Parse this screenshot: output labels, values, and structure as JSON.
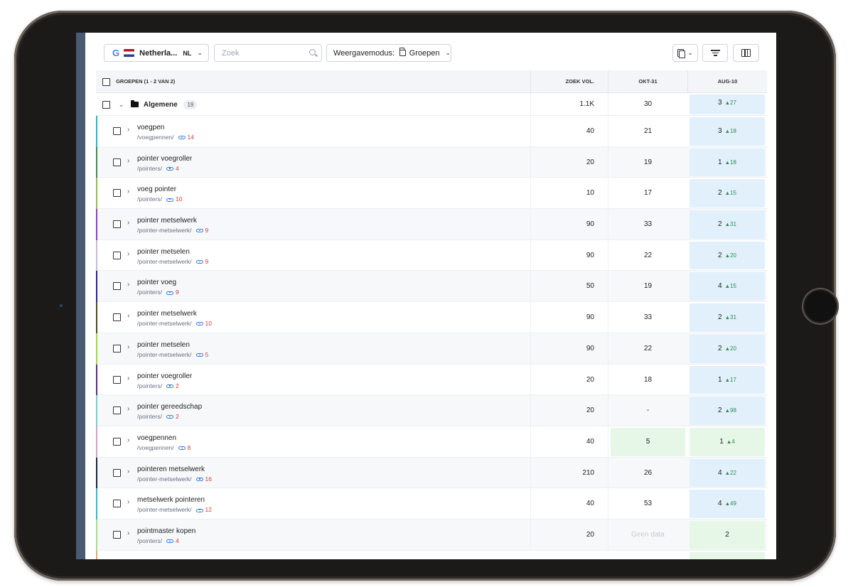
{
  "toolbar": {
    "country_name": "Netherla...",
    "country_code": "NL",
    "search_placeholder": "Zoek",
    "viewmode_label": "Weergavemodus:",
    "viewmode_value": "Groepen"
  },
  "table": {
    "header": {
      "groups": "GROEPEN (1 - 2 VAN 2)",
      "volume": "ZOEK VOL.",
      "okt": "OKT-31",
      "aug": "AUG-10"
    },
    "group": {
      "name": "Algemene",
      "count": "19",
      "volume": "1.1K",
      "okt": "30",
      "aug_rank": "3",
      "aug_change": "27"
    },
    "rows": [
      {
        "keyword": "voegpen",
        "url": "/voegpennen/",
        "links": "14",
        "volume": "40",
        "okt": "21",
        "aug_rank": "3",
        "aug_change": "18",
        "bar": "#21b8c9"
      },
      {
        "keyword": "pointer voegroller",
        "url": "/pointers/",
        "links": "4",
        "volume": "20",
        "okt": "19",
        "aug_rank": "1",
        "aug_change": "18",
        "bar": "#3f8a4a"
      },
      {
        "keyword": "voeg pointer",
        "url": "/pointers/",
        "links": "10",
        "volume": "10",
        "okt": "17",
        "aug_rank": "2",
        "aug_change": "15",
        "bar": "#8fbf4a"
      },
      {
        "keyword": "pointer metselwerk",
        "url": "/pointer-metselwerk/",
        "links": "9",
        "volume": "90",
        "okt": "33",
        "aug_rank": "2",
        "aug_change": "31",
        "bar": "#8a3fd1"
      },
      {
        "keyword": "pointer metselen",
        "url": "/pointer-metselwerk/",
        "links": "9",
        "volume": "90",
        "okt": "22",
        "aug_rank": "2",
        "aug_change": "20",
        "bar": "#c4b8e0"
      },
      {
        "keyword": "pointer voeg",
        "url": "/pointers/",
        "links": "9",
        "volume": "50",
        "okt": "19",
        "aug_rank": "4",
        "aug_change": "15",
        "bar": "#2a1fa0"
      },
      {
        "keyword": "pointer metselwerk",
        "url": "/pointer-metselwerk/",
        "links": "10",
        "volume": "90",
        "okt": "33",
        "aug_rank": "2",
        "aug_change": "31",
        "bar": "#4a4a1e"
      },
      {
        "keyword": "pointer metselen",
        "url": "/pointer-metselwerk/",
        "links": "5",
        "volume": "90",
        "okt": "22",
        "aug_rank": "2",
        "aug_change": "20",
        "bar": "#a6d83a"
      },
      {
        "keyword": "pointer voegroller",
        "url": "/pointers/",
        "links": "2",
        "volume": "20",
        "okt": "18",
        "aug_rank": "1",
        "aug_change": "17",
        "bar": "#5a2a8a"
      },
      {
        "keyword": "pointer gereedschap",
        "url": "/pointers/",
        "links": "2",
        "volume": "20",
        "okt": "-",
        "aug_rank": "2",
        "aug_change": "98",
        "bar": "#6fd4c4"
      },
      {
        "keyword": "voegpennen",
        "url": "/voegpennen/",
        "links": "8",
        "volume": "40",
        "okt": "5",
        "okt_highlight": true,
        "aug_rank": "1",
        "aug_change": "4",
        "aug_style": "green",
        "bar": "#d4a0c8"
      },
      {
        "keyword": "pointeren metselwerk",
        "url": "/pointer-metselwerk/",
        "links": "16",
        "volume": "210",
        "okt": "26",
        "aug_rank": "4",
        "aug_change": "22",
        "bar": "#1c2340"
      },
      {
        "keyword": "metselwerk pointeren",
        "url": "/pointer-metselwerk/",
        "links": "12",
        "volume": "40",
        "okt": "53",
        "aug_rank": "4",
        "aug_change": "49",
        "bar": "#33b8cf"
      },
      {
        "keyword": "pointmaster kopen",
        "url": "/pointers/",
        "links": "4",
        "volume": "20",
        "okt": "Geen data",
        "okt_nodata": true,
        "aug_rank": "2",
        "aug_change": "",
        "aug_style": "green",
        "bar": "#a8dc8a"
      }
    ]
  },
  "colors": {
    "aug_blue": "#e1f0fb",
    "aug_green": "#e6f6e7",
    "rank_up": "#2e8a4e",
    "link_count": "#d63b3b",
    "link_icon": "#3d7bd9"
  }
}
